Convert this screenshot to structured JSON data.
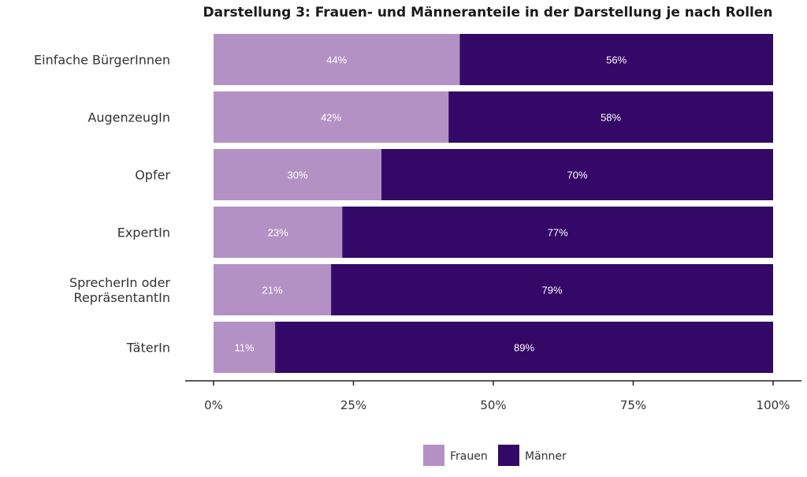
{
  "chart_data": {
    "type": "bar",
    "orientation": "horizontal",
    "stacked": true,
    "title": "Darstellung 3: Frauen- und Männeranteile in der Darstellung je nach Rollen",
    "categories": [
      [
        "Einfache BürgerInnen"
      ],
      [
        "AugenzeugIn"
      ],
      [
        "Opfer"
      ],
      [
        "ExpertIn"
      ],
      [
        "SprecherIn oder",
        "RepräsentantIn"
      ],
      [
        "TäterIn"
      ]
    ],
    "series": [
      {
        "name": "Frauen",
        "color": "#b491c4",
        "values": [
          44,
          42,
          30,
          23,
          21,
          11
        ],
        "labels": [
          "44%",
          "42%",
          "30%",
          "23%",
          "21%",
          "11%"
        ]
      },
      {
        "name": "Männer",
        "color": "#330867",
        "values": [
          56,
          58,
          70,
          77,
          79,
          89
        ],
        "labels": [
          "56%",
          "58%",
          "70%",
          "77%",
          "79%",
          "89%"
        ]
      }
    ],
    "xlim": [
      0,
      100
    ],
    "xticks": [
      0,
      25,
      50,
      75,
      100
    ],
    "xtick_labels": [
      "0%",
      "25%",
      "50%",
      "75%",
      "100%"
    ],
    "grid": false,
    "legend_position": "bottom"
  }
}
